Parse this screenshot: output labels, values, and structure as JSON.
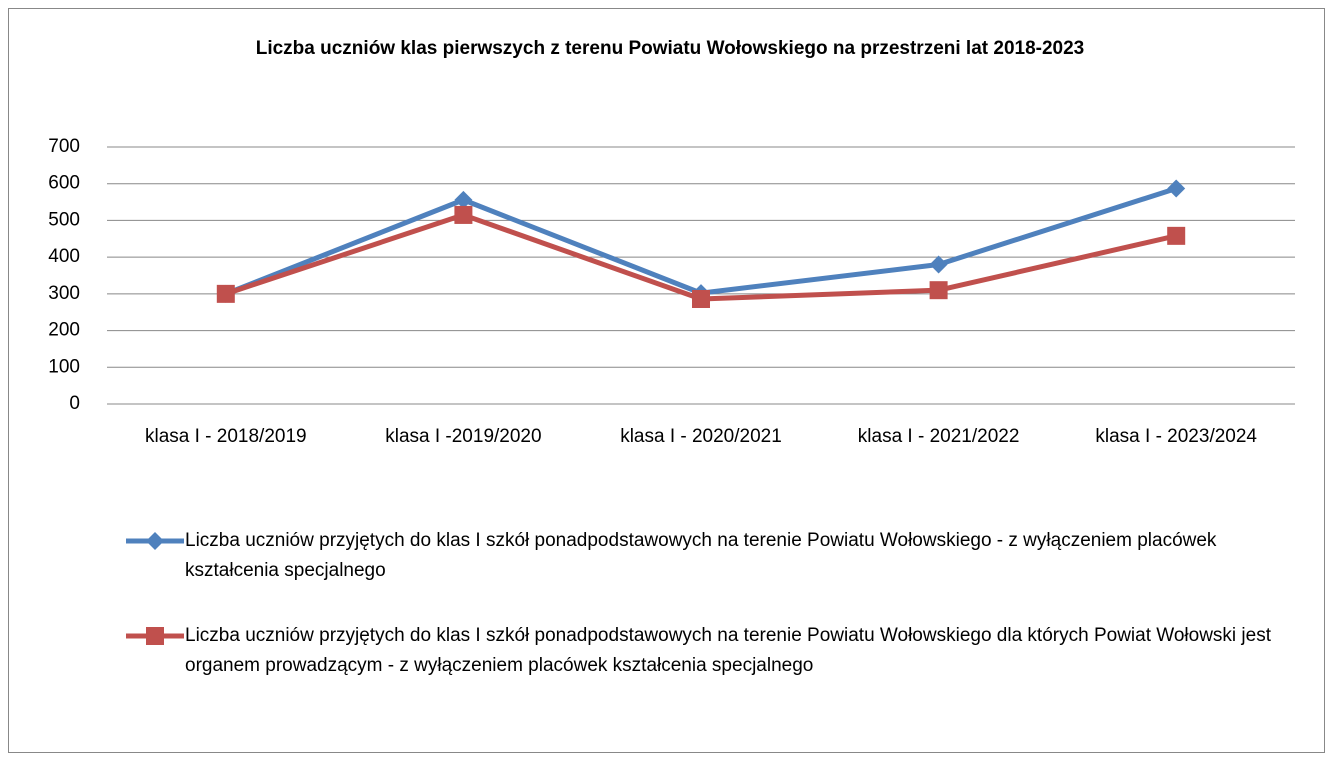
{
  "chart_data": {
    "type": "line",
    "title": "Liczba uczniów klas pierwszych z terenu Powiatu Wołowskiego na przestrzeni lat 2018-2023",
    "categories": [
      "klasa I - 2018/2019",
      "klasa I -2019/2020",
      "klasa I - 2020/2021",
      "klasa I - 2021/2022",
      "klasa I - 2023/2024"
    ],
    "series": [
      {
        "name": "Liczba uczniów przyjętych do klas I szkół ponadpodstawowych na terenie Powiatu Wołowskiego - z wyłączeniem placówek kształcenia specjalnego",
        "color": "#4f81bd",
        "marker": "diamond",
        "values": [
          300,
          556,
          302,
          380,
          587
        ]
      },
      {
        "name": "Liczba uczniów przyjętych do klas I szkół ponadpodstawowych na terenie Powiatu Wołowskiego dla których Powiat Wołowski jest organem prowadzącym - z wyłączeniem placówek kształcenia specjalnego",
        "color": "#c0504d",
        "marker": "square",
        "values": [
          300,
          515,
          286,
          310,
          458
        ]
      }
    ],
    "ylim": [
      0,
      700
    ],
    "yticks": [
      0,
      100,
      200,
      300,
      400,
      500,
      600,
      700
    ],
    "grid": true,
    "legend": "bottom"
  }
}
